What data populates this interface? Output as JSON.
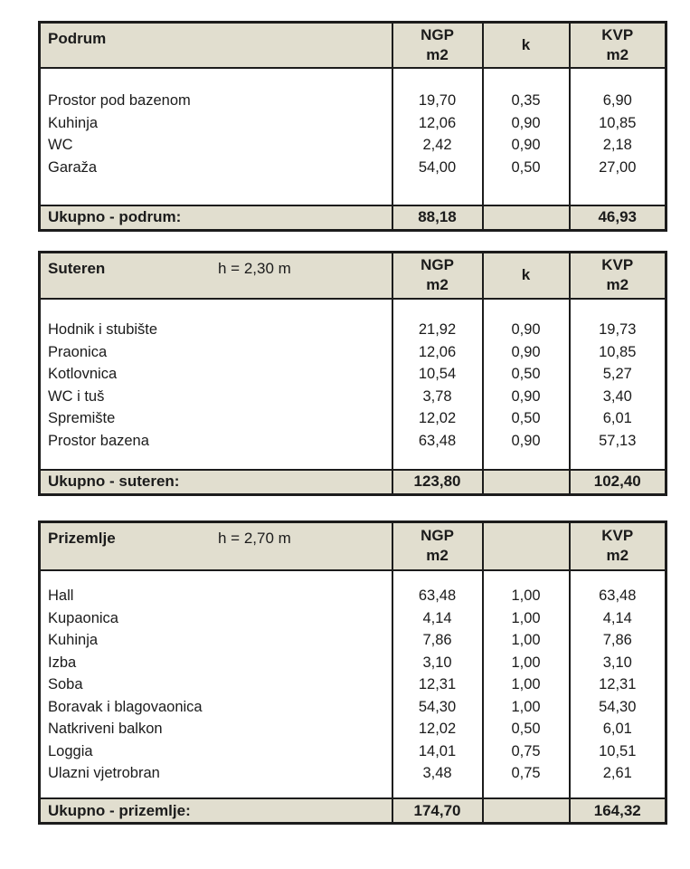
{
  "style": {
    "header_background": "#e1decf",
    "border_color": "#1c1c1c",
    "text_color": "#1b1b1b",
    "page_background": "#ffffff"
  },
  "tables": [
    {
      "title": "Podrum",
      "height_note": "",
      "columns": {
        "ngp": [
          "NGP",
          "m2"
        ],
        "k": "k",
        "kvp": [
          "KVP",
          "m2"
        ]
      },
      "rows": [
        {
          "label": "Prostor pod bazenom",
          "ngp": "19,70",
          "k": "0,35",
          "kvp": "6,90"
        },
        {
          "label": "Kuhinja",
          "ngp": "12,06",
          "k": "0,90",
          "kvp": "10,85"
        },
        {
          "label": "WC",
          "ngp": "2,42",
          "k": "0,90",
          "kvp": "2,18"
        },
        {
          "label": "Garaža",
          "ngp": "54,00",
          "k": "0,50",
          "kvp": "27,00"
        }
      ],
      "total": {
        "label": "Ukupno - podrum:",
        "ngp": "88,18",
        "k": "",
        "kvp": "46,93"
      }
    },
    {
      "title": "Suteren",
      "height_note": "h = 2,30 m",
      "columns": {
        "ngp": [
          "NGP",
          "m2"
        ],
        "k": "k",
        "kvp": [
          "KVP",
          "m2"
        ]
      },
      "rows": [
        {
          "label": "Hodnik i stubište",
          "ngp": "21,92",
          "k": "0,90",
          "kvp": "19,73"
        },
        {
          "label": "Praonica",
          "ngp": "12,06",
          "k": "0,90",
          "kvp": "10,85"
        },
        {
          "label": "Kotlovnica",
          "ngp": "10,54",
          "k": "0,50",
          "kvp": "5,27"
        },
        {
          "label": "WC i tuš",
          "ngp": "3,78",
          "k": "0,90",
          "kvp": "3,40"
        },
        {
          "label": "Spremište",
          "ngp": "12,02",
          "k": "0,50",
          "kvp": "6,01"
        },
        {
          "label": "Prostor bazena",
          "ngp": "63,48",
          "k": "0,90",
          "kvp": "57,13"
        }
      ],
      "total": {
        "label": "Ukupno - suteren:",
        "ngp": "123,80",
        "k": "",
        "kvp": "102,40"
      }
    },
    {
      "title": "Prizemlje",
      "height_note": "h = 2,70 m",
      "columns": {
        "ngp": [
          "NGP",
          "m2"
        ],
        "k": "",
        "kvp": [
          "KVP",
          "m2"
        ]
      },
      "rows": [
        {
          "label": "Hall",
          "ngp": "63,48",
          "k": "1,00",
          "kvp": "63,48"
        },
        {
          "label": "Kupaonica",
          "ngp": "4,14",
          "k": "1,00",
          "kvp": "4,14"
        },
        {
          "label": "Kuhinja",
          "ngp": "7,86",
          "k": "1,00",
          "kvp": "7,86"
        },
        {
          "label": "Izba",
          "ngp": "3,10",
          "k": "1,00",
          "kvp": "3,10"
        },
        {
          "label": "Soba",
          "ngp": "12,31",
          "k": "1,00",
          "kvp": "12,31"
        },
        {
          "label": "Boravak i blagovaonica",
          "ngp": "54,30",
          "k": "1,00",
          "kvp": "54,30"
        },
        {
          "label": "Natkriveni balkon",
          "ngp": "12,02",
          "k": "0,50",
          "kvp": "6,01"
        },
        {
          "label": "Loggia",
          "ngp": "14,01",
          "k": "0,75",
          "kvp": "10,51"
        },
        {
          "label": "Ulazni vjetrobran",
          "ngp": "3,48",
          "k": "0,75",
          "kvp": "2,61"
        }
      ],
      "total": {
        "label": "Ukupno - prizemlje:",
        "ngp": "174,70",
        "k": "",
        "kvp": "164,32"
      }
    }
  ]
}
